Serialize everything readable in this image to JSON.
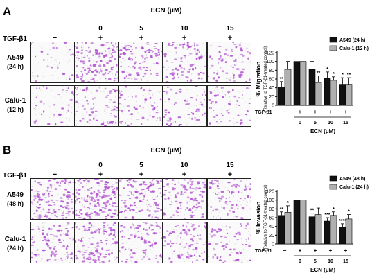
{
  "panels": [
    {
      "letter": "A",
      "header": "ECN (μM)",
      "concentrations": [
        "0",
        "5",
        "10",
        "15"
      ],
      "tgf_label": "TGF-β1",
      "tgf_signs": [
        "−",
        "+",
        "+",
        "+",
        "+"
      ],
      "rows": [
        {
          "name": "A549",
          "time": "(24 h)"
        },
        {
          "name": "Calu-1",
          "time": "(12 h)"
        }
      ],
      "densities": [
        [
          0.15,
          0.85,
          0.65,
          0.5,
          0.4
        ],
        [
          0.2,
          0.45,
          0.35,
          0.35,
          0.3
        ]
      ]
    },
    {
      "letter": "B",
      "header": "ECN (μM)",
      "concentrations": [
        "0",
        "5",
        "10",
        "15"
      ],
      "tgf_label": "TGF-β1",
      "tgf_signs": [
        "−",
        "+",
        "+",
        "+",
        "+"
      ],
      "rows": [
        {
          "name": "A549",
          "time": "(48 h)"
        },
        {
          "name": "Calu-1",
          "time": "(24 h)"
        }
      ],
      "densities": [
        [
          0.75,
          1.0,
          0.75,
          0.65,
          0.45
        ],
        [
          0.55,
          0.75,
          0.55,
          0.55,
          0.45
        ]
      ]
    }
  ],
  "colors": {
    "a549": "#111111",
    "calu1": "#b0b0b0",
    "stain": "#b04dcf"
  },
  "chart_data": [
    {
      "type": "bar",
      "ylabel": "% Migration",
      "ylabel_sub": "(Relative to TGF-β1-treated control)",
      "ylim": [
        0,
        120
      ],
      "yticks": [
        "0",
        "20",
        "40",
        "60",
        "80",
        "100",
        "120"
      ],
      "categories": [
        "−",
        "+",
        "+",
        "+",
        "+"
      ],
      "tgf_label": "TGF-β1",
      "ecn_values": [
        "",
        "0",
        "5",
        "10",
        "15"
      ],
      "xlabel": "ECN (μM)",
      "series": [
        {
          "name": "A549 (24 h)",
          "values": [
            42,
            100,
            82,
            62,
            48
          ],
          "errors": [
            12,
            0,
            18,
            14,
            15
          ],
          "stars": [
            "**",
            "",
            "",
            "*",
            "*"
          ]
        },
        {
          "name": "Calu-1 (12 h)",
          "values": [
            82,
            100,
            52,
            57,
            48
          ],
          "errors": [
            18,
            0,
            15,
            8,
            15
          ],
          "stars": [
            "",
            "",
            "**",
            "*",
            "**"
          ]
        }
      ]
    },
    {
      "type": "bar",
      "ylabel": "% Invasion",
      "ylabel_sub": "(Relative to TGF-β1-treated control)",
      "ylim": [
        0,
        120
      ],
      "yticks": [
        "0",
        "20",
        "40",
        "60",
        "80",
        "100",
        "120"
      ],
      "categories": [
        "−",
        "+",
        "+",
        "+",
        "+"
      ],
      "tgf_label": "TGF-β1",
      "ecn_values": [
        "",
        "0",
        "5",
        "10",
        "15"
      ],
      "xlabel": "ECN (μM)",
      "series": [
        {
          "name": "A549 (48 h)",
          "values": [
            65,
            100,
            62,
            52,
            38
          ],
          "errors": [
            8,
            0,
            8,
            8,
            8
          ],
          "stars": [
            "**",
            "",
            "**",
            "***",
            "****"
          ]
        },
        {
          "name": "Calu-1 (24 h)",
          "values": [
            72,
            100,
            67,
            65,
            57
          ],
          "errors": [
            15,
            0,
            15,
            8,
            10
          ],
          "stars": [
            "*",
            "",
            "",
            "*",
            "*"
          ]
        }
      ]
    }
  ]
}
